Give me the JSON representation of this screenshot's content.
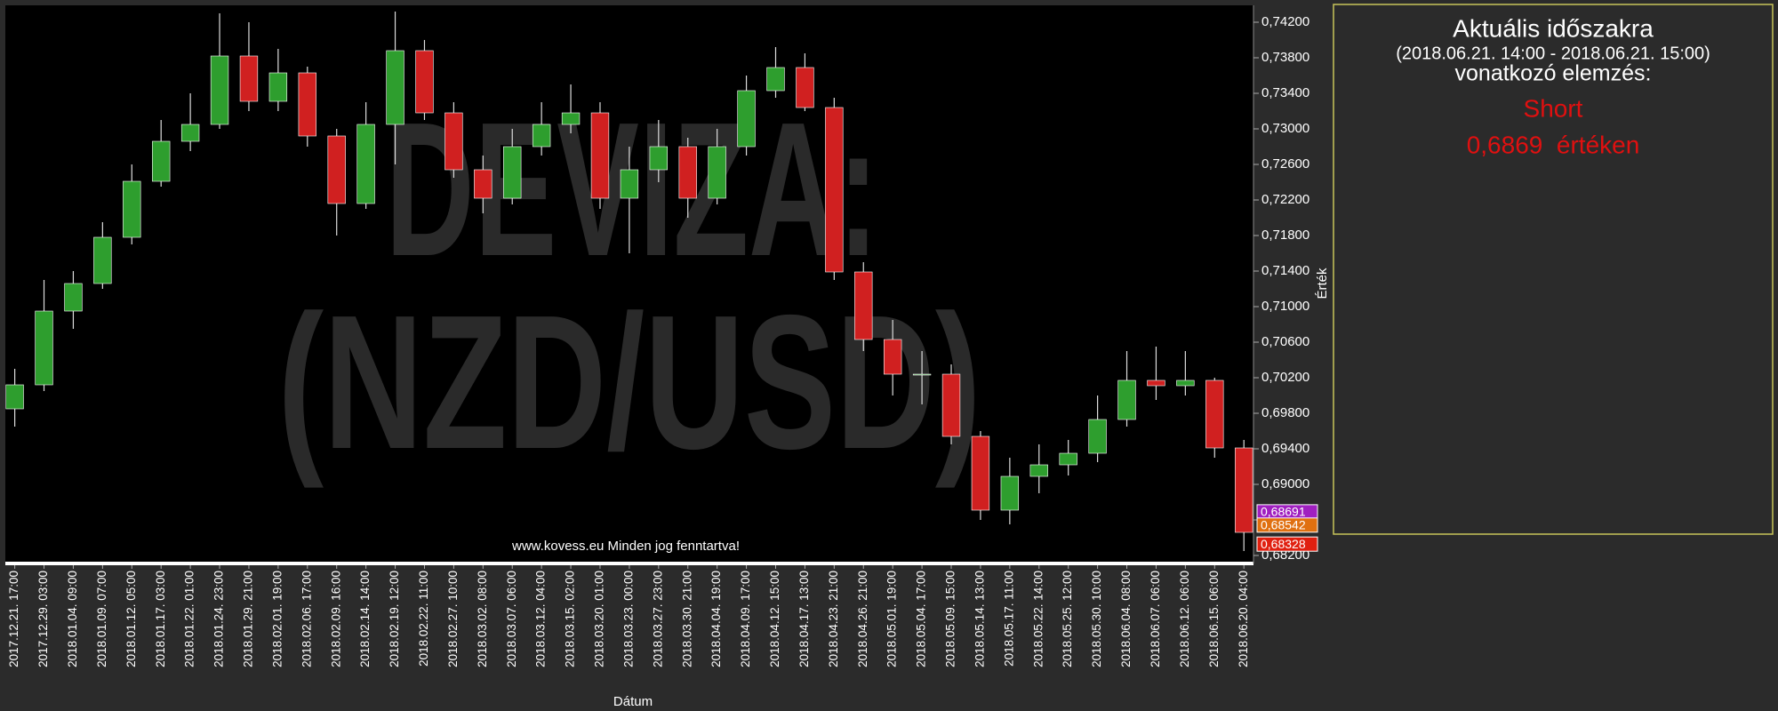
{
  "chart_data": {
    "type": "candlestick",
    "watermark": [
      "DEVIZA:",
      "(NZD/USD)"
    ],
    "footer": "www.kovess.eu Minden jog fenntartva!",
    "x_label": "Dátum",
    "y_label": "Érték",
    "up_color": "#2e9e2e",
    "down_color": "#d02020",
    "categories": [
      "2017.12.21. 17:00",
      "2017.12.29. 03:00",
      "2018.01.04. 09:00",
      "2018.01.09. 07:00",
      "2018.01.12. 05:00",
      "2018.01.17. 03:00",
      "2018.01.22. 01:00",
      "2018.01.24. 23:00",
      "2018.01.29. 21:00",
      "2018.02.01. 19:00",
      "2018.02.06. 17:00",
      "2018.02.09. 16:00",
      "2018.02.14. 14:00",
      "2018.02.19. 12:00",
      "2018.02.22. 11:00",
      "2018.02.27. 10:00",
      "2018.03.02. 08:00",
      "2018.03.07. 06:00",
      "2018.03.12. 04:00",
      "2018.03.15. 02:00",
      "2018.03.20. 01:00",
      "2018.03.23. 00:00",
      "2018.03.27. 23:00",
      "2018.03.30. 21:00",
      "2018.04.04. 19:00",
      "2018.04.09. 17:00",
      "2018.04.12. 15:00",
      "2018.04.17. 13:00",
      "2018.04.23. 21:00",
      "2018.04.26. 21:00",
      "2018.05.01. 19:00",
      "2018.05.04. 17:00",
      "2018.05.09. 15:00",
      "2018.05.14. 13:00",
      "2018.05.17. 11:00",
      "2018.05.22. 14:00",
      "2018.05.25. 12:00",
      "2018.05.30. 10:00",
      "2018.06.04. 08:00",
      "2018.06.07. 06:00",
      "2018.06.12. 06:00",
      "2018.06.15. 06:00",
      "2018.06.20. 04:00"
    ],
    "open": [
      0.6985,
      0.7012,
      0.7095,
      0.7126,
      0.7178,
      0.7241,
      0.7286,
      0.7305,
      0.7382,
      0.7331,
      0.7363,
      0.7292,
      0.7216,
      0.7305,
      0.7388,
      0.7318,
      0.7254,
      0.7222,
      0.728,
      0.7305,
      0.7318,
      0.7222,
      0.7254,
      0.728,
      0.7222,
      0.728,
      0.7343,
      0.7369,
      0.7324,
      0.7139,
      0.7063,
      0.7024,
      0.7024,
      0.6954,
      0.6871,
      0.6909,
      0.6922,
      0.6935,
      0.6973,
      0.7017,
      0.7011,
      0.7017,
      0.6941
    ],
    "high": [
      0.703,
      0.713,
      0.714,
      0.7195,
      0.726,
      0.731,
      0.734,
      0.743,
      0.742,
      0.739,
      0.737,
      0.73,
      0.733,
      0.7432,
      0.74,
      0.733,
      0.727,
      0.73,
      0.733,
      0.735,
      0.733,
      0.728,
      0.731,
      0.729,
      0.73,
      0.736,
      0.7392,
      0.7385,
      0.7335,
      0.715,
      0.7085,
      0.705,
      0.7035,
      0.696,
      0.693,
      0.6945,
      0.695,
      0.7,
      0.705,
      0.7055,
      0.705,
      0.702,
      0.695
    ],
    "low": [
      0.6965,
      0.7005,
      0.7075,
      0.712,
      0.717,
      0.7235,
      0.7275,
      0.73,
      0.732,
      0.732,
      0.728,
      0.718,
      0.721,
      0.726,
      0.731,
      0.7245,
      0.7205,
      0.7215,
      0.727,
      0.7295,
      0.721,
      0.716,
      0.724,
      0.72,
      0.7215,
      0.727,
      0.7335,
      0.732,
      0.713,
      0.705,
      0.7,
      0.699,
      0.6945,
      0.686,
      0.6855,
      0.689,
      0.691,
      0.6925,
      0.6965,
      0.6995,
      0.7,
      0.693,
      0.6825
    ],
    "close": [
      0.7012,
      0.7095,
      0.7126,
      0.7178,
      0.7241,
      0.7286,
      0.7305,
      0.7382,
      0.7331,
      0.7363,
      0.7292,
      0.7216,
      0.7305,
      0.7388,
      0.7318,
      0.7254,
      0.7222,
      0.728,
      0.7305,
      0.7318,
      0.7222,
      0.7254,
      0.728,
      0.7222,
      0.728,
      0.7343,
      0.7369,
      0.7324,
      0.7139,
      0.7063,
      0.7024,
      0.7024,
      0.6954,
      0.6871,
      0.6909,
      0.6922,
      0.6935,
      0.6973,
      0.7017,
      0.7011,
      0.7017,
      0.6941,
      0.6846
    ],
    "ylim": [
      0.6811,
      0.7439
    ],
    "yticks": [
      {
        "value": 0.742,
        "label": "0,74200"
      },
      {
        "value": 0.738,
        "label": "0,73800"
      },
      {
        "value": 0.734,
        "label": "0,73400"
      },
      {
        "value": 0.73,
        "label": "0,73000"
      },
      {
        "value": 0.726,
        "label": "0,72600"
      },
      {
        "value": 0.722,
        "label": "0,72200"
      },
      {
        "value": 0.718,
        "label": "0,71800"
      },
      {
        "value": 0.714,
        "label": "0,71400"
      },
      {
        "value": 0.71,
        "label": "0,71000"
      },
      {
        "value": 0.706,
        "label": "0,70600"
      },
      {
        "value": 0.702,
        "label": "0,70200"
      },
      {
        "value": 0.698,
        "label": "0,69800"
      },
      {
        "value": 0.694,
        "label": "0,69400"
      },
      {
        "value": 0.69,
        "label": "0,69000"
      },
      {
        "value": 0.686,
        "label": "0,68600"
      },
      {
        "value": 0.682,
        "label": "0,68200"
      }
    ],
    "price_labels": [
      {
        "value": 0.68691,
        "label": "0,68691",
        "color": "#a020c0"
      },
      {
        "value": 0.68542,
        "label": "0,68542",
        "color": "#e07010"
      },
      {
        "value": 0.68328,
        "label": "0,68328",
        "color": "#e02010"
      }
    ]
  },
  "panel": {
    "title": "Aktuális időszakra",
    "period": "(2018.06.21. 14:00 - 2018.06.21. 15:00)",
    "subtitle": "vonatkozó elemzés:",
    "signal": "Short",
    "level": "0,6869  értéken"
  }
}
